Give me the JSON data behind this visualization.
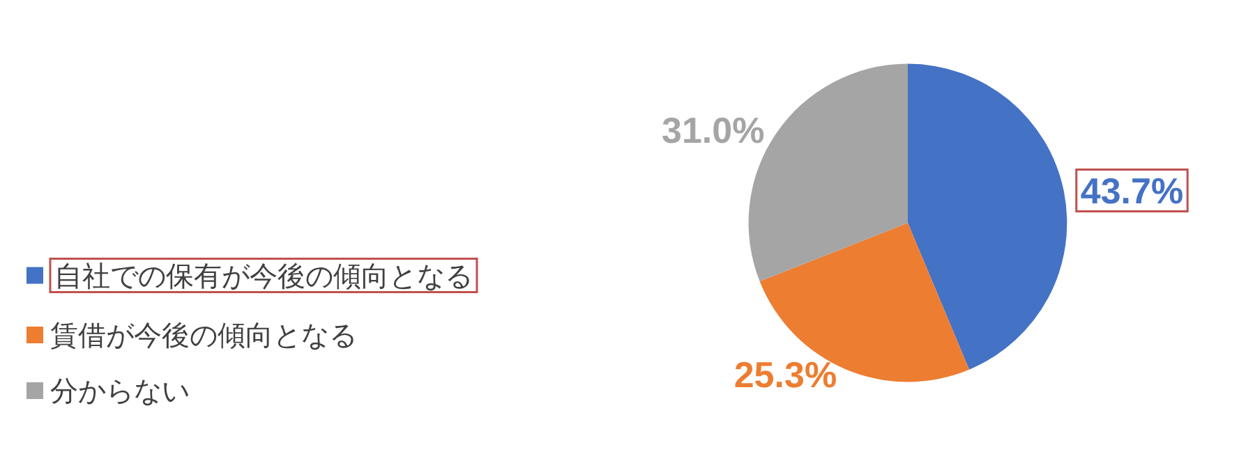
{
  "chart_data": {
    "type": "pie",
    "categories": [
      "自社での保有が今後の傾向となる",
      "賃借が今後の傾向となる",
      "分からない"
    ],
    "values": [
      43.7,
      25.3,
      31.0
    ],
    "colors": [
      "#4472c4",
      "#ed7d31",
      "#a5a5a5"
    ],
    "value_labels": [
      "43.7%",
      "25.3%",
      "31.0%"
    ],
    "legend": "left"
  }
}
